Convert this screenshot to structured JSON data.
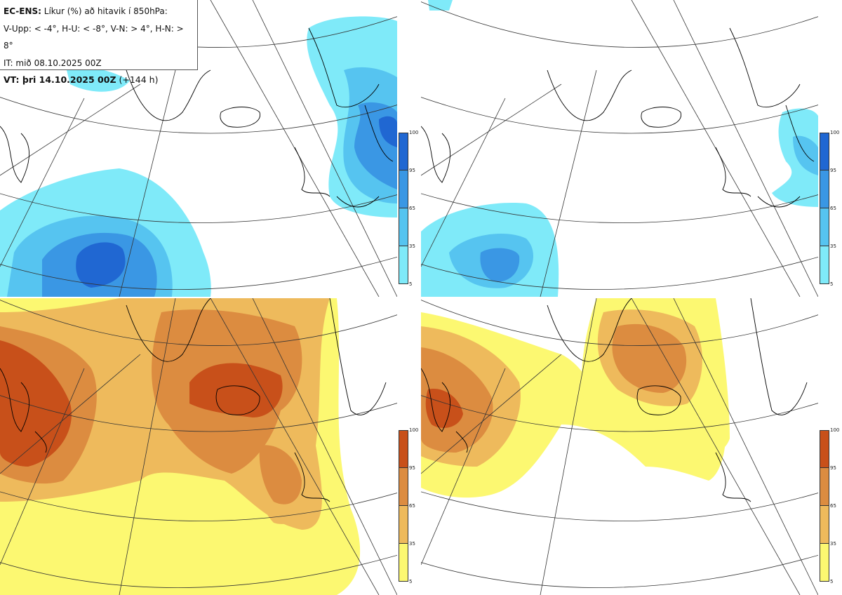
{
  "info": {
    "model": "EC-ENS:",
    "title": "Líkur (%) að hitavik í 850hPa:",
    "thresholds": "V-Upp: < -4°, H-U: < -8°, V-N: > 4°, H-N: > 8°",
    "issued": "IT: mið 08.10.2025 00Z",
    "valid_bold": "VT: þri 14.10.2025 00Z",
    "valid_rest": "(+144 h)"
  },
  "colorbars": {
    "cold": {
      "ticks": [
        "100",
        "95",
        "65",
        "35",
        "5"
      ],
      "colors": [
        "#2067d2",
        "#3a97e4",
        "#56c4f0",
        "#7feaf9"
      ]
    },
    "warm": {
      "ticks": [
        "100",
        "95",
        "65",
        "35",
        "5"
      ],
      "colors": [
        "#c8501a",
        "#dc8c40",
        "#eeba5c",
        "#fcf871"
      ]
    }
  },
  "panels": [
    {
      "id": "V-Upp",
      "scheme": "cold"
    },
    {
      "id": "H-U",
      "scheme": "cold"
    },
    {
      "id": "V-N",
      "scheme": "warm"
    },
    {
      "id": "H-N",
      "scheme": "warm"
    }
  ]
}
